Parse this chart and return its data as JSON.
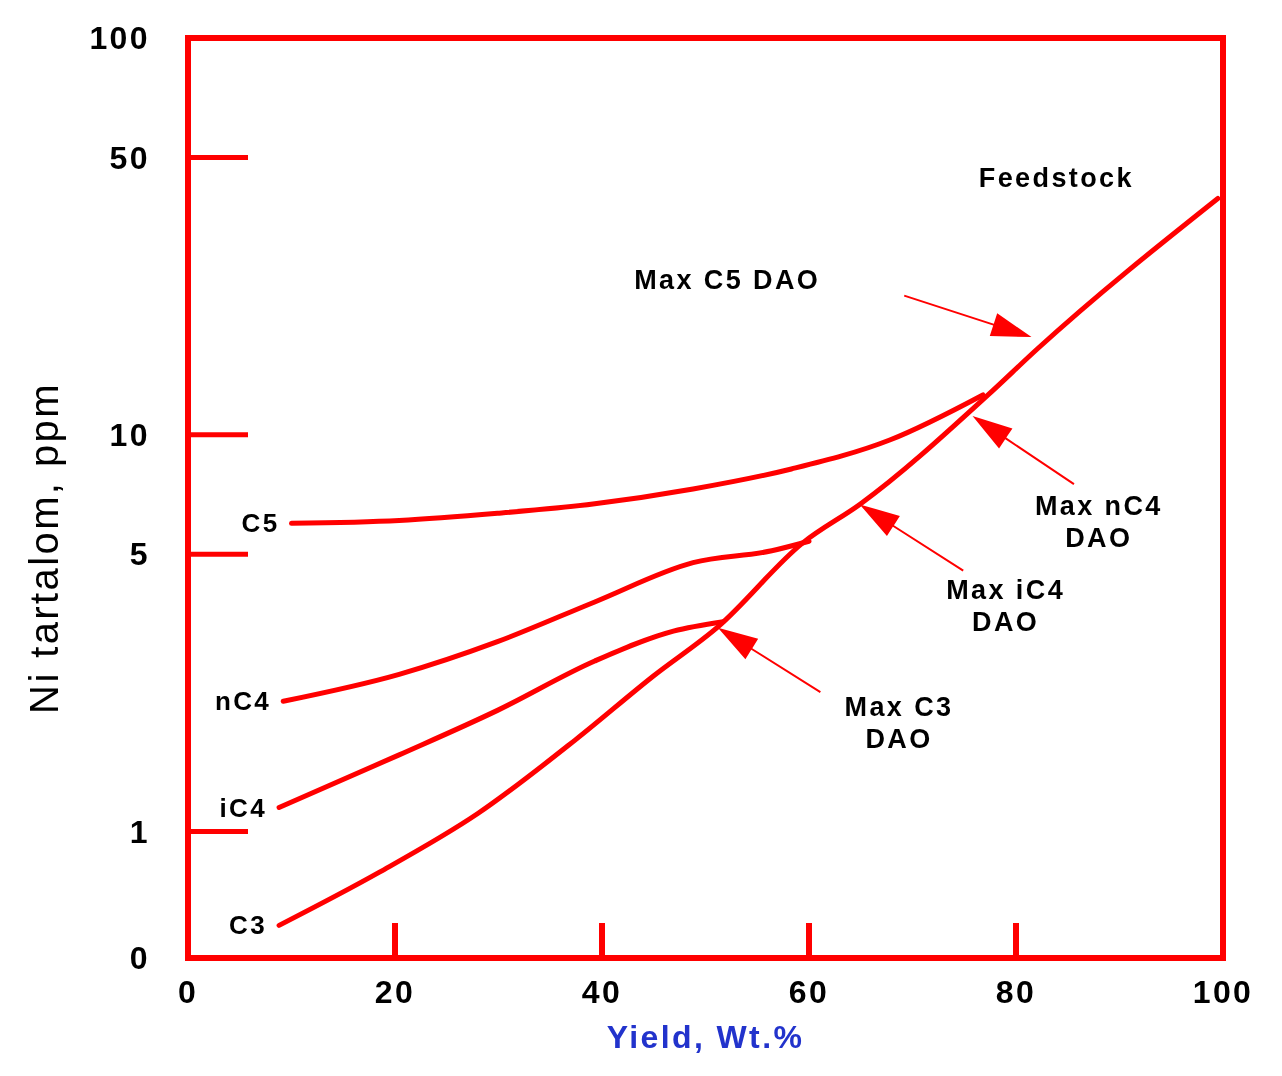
{
  "chart_data": {
    "type": "line",
    "xlabel": "Yield, Wt.%",
    "ylabel": "Ni tartalom, ppm",
    "log": "y",
    "grid": false,
    "marker": "none",
    "line_style": "solid",
    "xlim": [
      0,
      100
    ],
    "xticks": [
      0,
      20,
      40,
      60,
      80,
      100
    ],
    "ylim": [
      0.48,
      100
    ],
    "yticks": [
      {
        "value": 0.48,
        "label": "0"
      },
      1,
      5,
      10,
      50,
      100
    ],
    "series": [
      {
        "name": "C3",
        "color": "#ff0000",
        "x": [
          8.8,
          18.5,
          28,
          37.4,
          45,
          51.2,
          59.4,
          65,
          77.3,
          82,
          99.5
        ],
        "values": [
          0.58,
          0.79,
          1.11,
          1.7,
          2.47,
          3.28,
          5.34,
          6.7,
          12.6,
          16.4,
          39.4
        ]
      },
      {
        "name": "iC4",
        "color": "#ff0000",
        "x": [
          8.8,
          20.4,
          29.9,
          39.3,
          46.9,
          51.7
        ],
        "values": [
          1.15,
          1.56,
          2.02,
          2.69,
          3.2,
          3.38
        ]
      },
      {
        "name": "nC4",
        "color": "#ff0000",
        "x": [
          9.2,
          20.4,
          29.9,
          39.3,
          48.8,
          56.4,
          60
        ],
        "values": [
          2.13,
          2.49,
          3.01,
          3.79,
          4.76,
          5.1,
          5.39
        ]
      },
      {
        "name": "C5",
        "color": "#ff0000",
        "x": [
          10,
          20.4,
          29.9,
          39.3,
          48.8,
          58.3,
          67.8,
          76.8
        ],
        "values": [
          5.98,
          6.08,
          6.34,
          6.7,
          7.3,
          8.2,
          9.7,
          12.6
        ]
      }
    ],
    "annotations": [
      "Feedstock",
      "Max C5 DAO",
      "Max nC4 DAO",
      "Max iC4 DAO",
      "Max C3 DAO"
    ]
  }
}
